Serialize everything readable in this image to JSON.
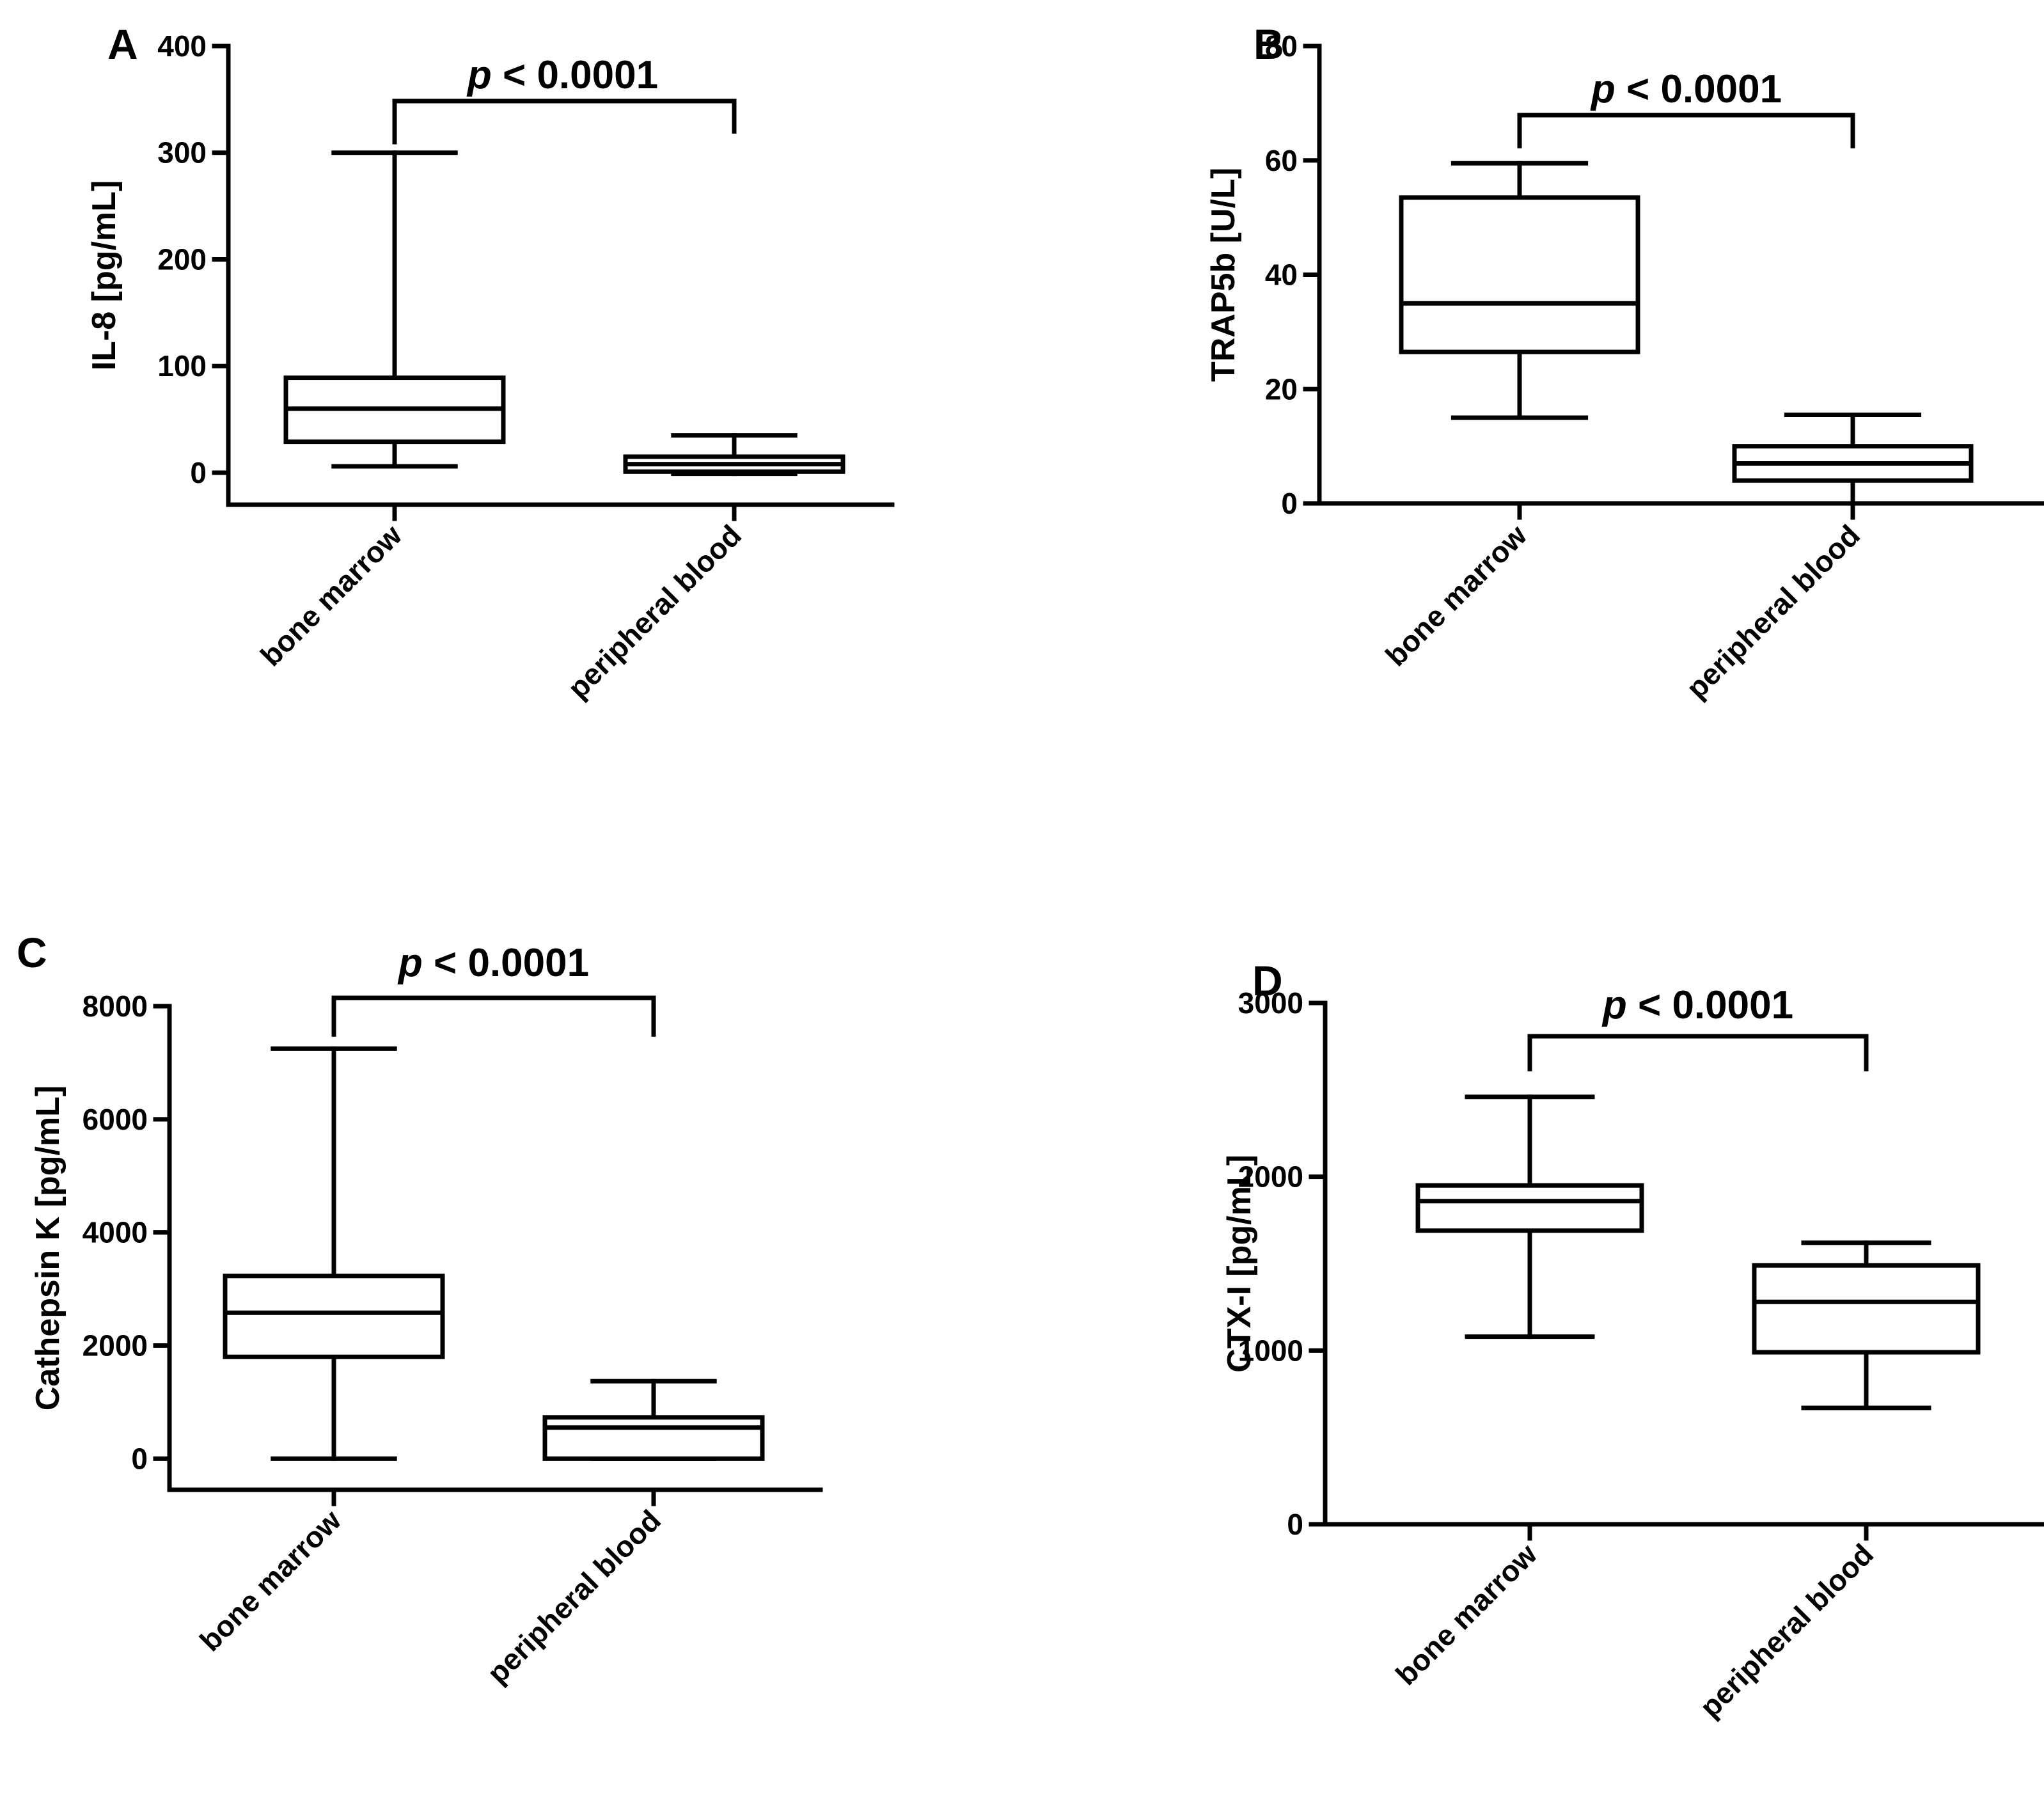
{
  "chart_data": [
    {
      "type": "box",
      "panel_label": "A",
      "categories": [
        "bone marrow",
        "peripheral blood"
      ],
      "boxes": [
        {
          "name": "bone marrow",
          "whisker_low": 6,
          "q1": 29,
          "median": 60,
          "q3": 89,
          "whisker_high": 300
        },
        {
          "name": "peripheral blood",
          "whisker_low": -1,
          "q1": 1,
          "median": 8,
          "q3": 15,
          "whisker_high": 35
        }
      ],
      "ylabel": "IL-8 [pg/mL]",
      "ylim": [
        -30,
        400
      ],
      "yticks": [
        0,
        100,
        200,
        300,
        400
      ],
      "annotation": {
        "italic": "p",
        "text": " < 0.0001"
      },
      "bracket_bottoms": [
        310,
        320
      ]
    },
    {
      "type": "box",
      "panel_label": "B",
      "categories": [
        "bone marrow",
        "peripheral blood"
      ],
      "boxes": [
        {
          "name": "bone marrow",
          "whisker_low": 15,
          "q1": 26.5,
          "median": 35,
          "q3": 53.5,
          "whisker_high": 59.5
        },
        {
          "name": "peripheral blood",
          "whisker_low": 0,
          "q1": 4,
          "median": 7,
          "q3": 10,
          "whisker_high": 15.5
        }
      ],
      "ylabel": "TRAP5b  [U/L]",
      "ylim": [
        0,
        80
      ],
      "yticks": [
        0,
        20,
        40,
        60,
        80
      ],
      "annotation": {
        "italic": "p",
        "text": " < 0.0001"
      },
      "bracket_bottoms": [
        62.5,
        62.5
      ]
    },
    {
      "type": "box",
      "panel_label": "C",
      "categories": [
        "bone marrow",
        "peripheral blood"
      ],
      "boxes": [
        {
          "name": "bone marrow",
          "whisker_low": 0,
          "q1": 1800,
          "median": 2580,
          "q3": 3230,
          "whisker_high": 7250
        },
        {
          "name": "peripheral blood",
          "whisker_low": 0,
          "q1": 0,
          "median": 550,
          "q3": 730,
          "whisker_high": 1370
        }
      ],
      "ylabel": "Cathepsin K [pg/mL]",
      "ylim": [
        -550,
        8000
      ],
      "yticks": [
        0,
        2000,
        4000,
        6000,
        8000
      ],
      "annotation": {
        "italic": "p",
        "text": " < 0.0001"
      },
      "bracket_bottoms": [
        7500,
        7500
      ]
    },
    {
      "type": "box",
      "panel_label": "D",
      "categories": [
        "bone marrow",
        "peripheral blood"
      ],
      "boxes": [
        {
          "name": "bone marrow",
          "whisker_low": 1080,
          "q1": 1690,
          "median": 1860,
          "q3": 1950,
          "whisker_high": 2460
        },
        {
          "name": "peripheral blood",
          "whisker_low": 670,
          "q1": 990,
          "median": 1280,
          "q3": 1490,
          "whisker_high": 1620
        }
      ],
      "ylabel": "CTX-I [pg/mL]",
      "ylim": [
        0,
        3000
      ],
      "yticks": [
        0,
        1000,
        2000,
        3000
      ],
      "annotation": {
        "italic": "p",
        "text": " < 0.0001"
      },
      "bracket_bottoms": [
        2620,
        2620
      ]
    }
  ]
}
